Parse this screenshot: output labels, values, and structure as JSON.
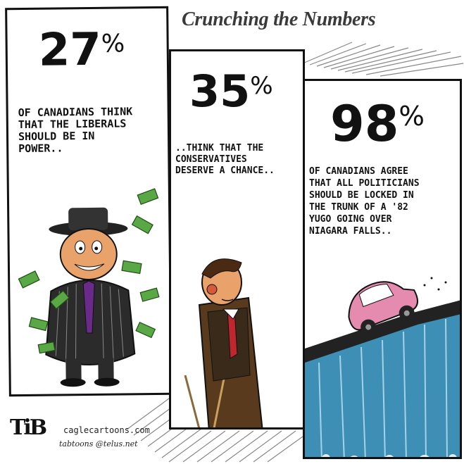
{
  "title": "Crunching the Numbers",
  "panels": [
    {
      "number": "27",
      "percent": "%",
      "caption": [
        "OF CANADIANS THINK",
        "THAT THE LIBERALS",
        "SHOULD BE IN",
        "POWER.."
      ]
    },
    {
      "number": "35",
      "percent": "%",
      "caption": [
        "..THINK THAT THE",
        "CONSERVATIVES",
        "DESERVE A CHANCE.."
      ]
    },
    {
      "number": "98",
      "percent": "%",
      "caption": [
        "OF CANADIANS AGREE",
        "THAT ALL POLITICIANS",
        "SHOULD BE LOCKED IN",
        "THE TRUNK OF A '82",
        "YUGO GOING OVER",
        "NIAGARA FALLS.."
      ]
    }
  ],
  "credit": {
    "signature": "TiB",
    "site": "caglecartoons.com",
    "email": "tabtoons @telus.net"
  },
  "colors": {
    "money_green": "#5aa845",
    "tie_purple": "#6a2a8a",
    "skin": "#e8a26a",
    "car_pink": "#e58bb0",
    "water": "#3d8fb6"
  }
}
